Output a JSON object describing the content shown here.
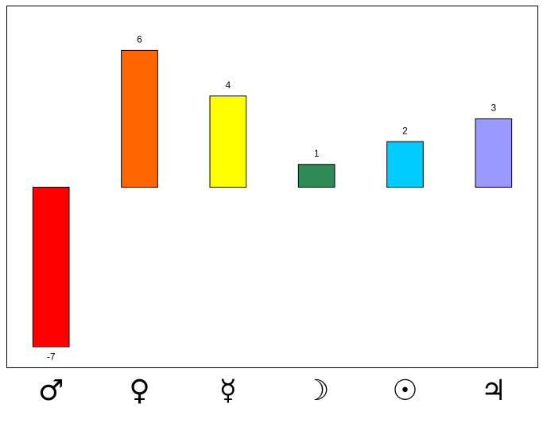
{
  "chart_data": {
    "type": "bar",
    "categories": [
      "♂",
      "♀",
      "☿",
      "☽",
      "☉",
      "♃"
    ],
    "values": [
      -7,
      6,
      4,
      1,
      2,
      3
    ],
    "colors": [
      "#ff0000",
      "#ff6600",
      "#ffff00",
      "#2e8b57",
      "#00ccff",
      "#9999ff"
    ],
    "ylim": [
      -7.92,
      7.95
    ]
  }
}
